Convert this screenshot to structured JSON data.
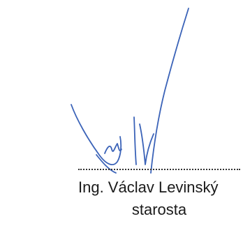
{
  "signature": {
    "signer_name": "Ing. Václav Levinský",
    "signer_role": "starosta",
    "ink_color": "#3b63b8"
  }
}
